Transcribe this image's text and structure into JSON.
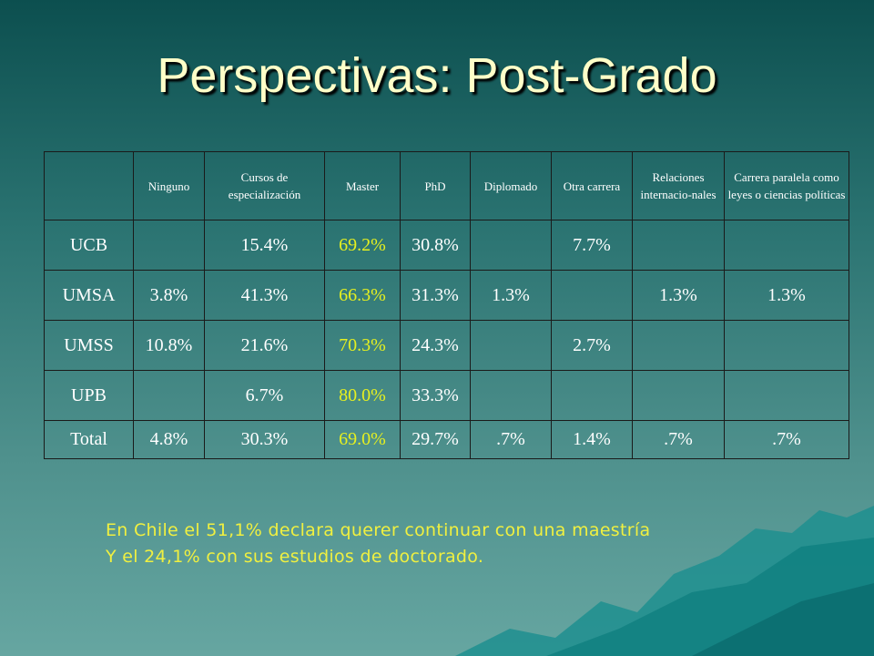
{
  "title": "Perspectivas: Post-Grado",
  "table": {
    "header": [
      null,
      "Ninguno",
      "Cursos de especialización",
      "Master",
      "PhD",
      "Diplomado",
      "Otra carrera",
      "Relaciones internacio-nales",
      "Carrera paralela como leyes o ciencias políticas"
    ],
    "rows": [
      [
        "UCB",
        null,
        "15.4%",
        "69.2%",
        "30.8%",
        null,
        "7.7%",
        null,
        null
      ],
      [
        "UMSA",
        "3.8%",
        "41.3%",
        "66.3%",
        "31.3%",
        "1.3%",
        null,
        "1.3%",
        "1.3%"
      ],
      [
        "UMSS",
        "10.8%",
        "21.6%",
        "70.3%",
        "24.3%",
        null,
        "2.7%",
        null,
        null
      ],
      [
        "UPB",
        null,
        "6.7%",
        "80.0%",
        "33.3%",
        null,
        null,
        null,
        null
      ],
      [
        "Total",
        "4.8%",
        "30.3%",
        "69.0%",
        "29.7%",
        ".7%",
        "1.4%",
        ".7%",
        ".7%"
      ]
    ]
  },
  "notes": [
    "En Chile el 51,1% declara querer continuar con una maestría",
    "Y el 24,1% con sus estudios de doctorado."
  ]
}
